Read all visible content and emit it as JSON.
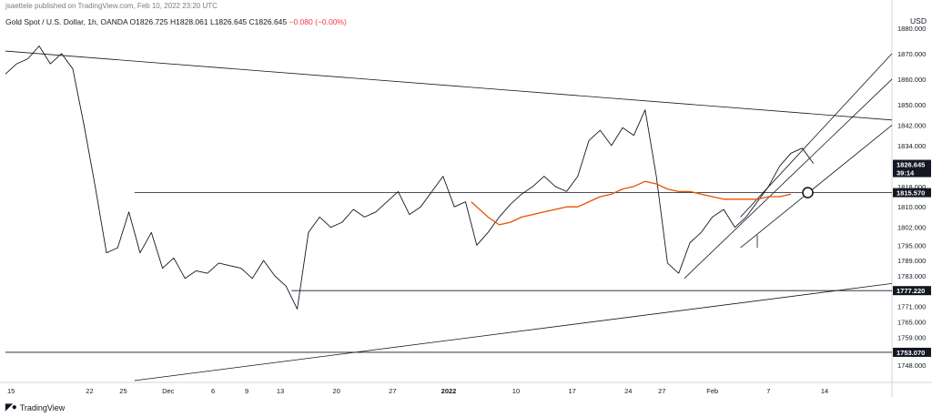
{
  "header": {
    "text": "jsaettele published on TradingView.com, Feb 10, 2022 23:20 UTC"
  },
  "instrument": {
    "name": "Gold Spot / U.S. Dollar, 1h, OANDA",
    "open": "O1826.725",
    "high": "H1828.061",
    "low": "L1826.645",
    "close": "C1826.645",
    "change": "−0.080 (−0.00%)"
  },
  "currency": "USD",
  "brand": {
    "logo_icon": "tradingview-logo-icon",
    "name": "TradingView"
  },
  "colors": {
    "price": "#131722",
    "vwap": "#e65100",
    "trendline": "#131722",
    "channel": "#787b86",
    "label_bg": "#131722",
    "label_text": "#ffffff"
  },
  "chart_data": {
    "type": "line",
    "ylim": [
      1742,
      1886
    ],
    "y_ticks": [
      1880,
      1870,
      1860,
      1850,
      1842,
      1834,
      1826,
      1818,
      1810,
      1802,
      1795,
      1789,
      1783,
      1777,
      1771,
      1765,
      1759,
      1753,
      1748
    ],
    "y_tick_labels": [
      "1880.000",
      "1870.000",
      "1860.000",
      "1850.000",
      "1842.000",
      "1834.000",
      "1826.000",
      "1818.000",
      "1810.000",
      "1802.000",
      "1795.000",
      "1789.000",
      "1783.000",
      "1777.000",
      "1771.000",
      "1765.000",
      "1759.000",
      "1753.000",
      "1748.000"
    ],
    "x_ticks": [
      {
        "label": "15",
        "i": 0.5,
        "bold": false
      },
      {
        "label": "22",
        "i": 7.5,
        "bold": false
      },
      {
        "label": "25",
        "i": 10.5,
        "bold": false
      },
      {
        "label": "Dec",
        "i": 14.5,
        "bold": false
      },
      {
        "label": "6",
        "i": 18.5,
        "bold": false
      },
      {
        "label": "9",
        "i": 21.5,
        "bold": false
      },
      {
        "label": "13",
        "i": 24.5,
        "bold": false
      },
      {
        "label": "20",
        "i": 29.5,
        "bold": false
      },
      {
        "label": "27",
        "i": 34.5,
        "bold": false
      },
      {
        "label": "2022",
        "i": 39.5,
        "bold": true
      },
      {
        "label": "10",
        "i": 45.5,
        "bold": false
      },
      {
        "label": "17",
        "i": 50.5,
        "bold": false
      },
      {
        "label": "24",
        "i": 55.5,
        "bold": false
      },
      {
        "label": "27",
        "i": 58.5,
        "bold": false
      },
      {
        "label": "Feb",
        "i": 63,
        "bold": false
      },
      {
        "label": "7",
        "i": 68,
        "bold": false
      },
      {
        "label": "14",
        "i": 73,
        "bold": false
      }
    ],
    "series": [
      {
        "type": "line",
        "points": [
          [
            0,
            1862
          ],
          [
            1,
            1866
          ],
          [
            2,
            1868
          ],
          [
            3,
            1873
          ],
          [
            4,
            1866
          ],
          [
            5,
            1870
          ],
          [
            6,
            1864
          ],
          [
            7,
            1842
          ],
          [
            8,
            1818
          ],
          [
            9,
            1792
          ],
          [
            10,
            1794
          ],
          [
            11,
            1808
          ],
          [
            12,
            1792
          ],
          [
            13,
            1800
          ],
          [
            14,
            1786
          ],
          [
            15,
            1790
          ],
          [
            16,
            1782
          ],
          [
            17,
            1785
          ],
          [
            18,
            1784
          ],
          [
            19,
            1788
          ],
          [
            20,
            1787
          ],
          [
            21,
            1786
          ],
          [
            22,
            1782
          ],
          [
            23,
            1789
          ],
          [
            24,
            1783
          ],
          [
            25,
            1779
          ],
          [
            26,
            1770
          ],
          [
            27,
            1800
          ],
          [
            28,
            1806
          ],
          [
            29,
            1802
          ],
          [
            30,
            1804
          ],
          [
            31,
            1809
          ],
          [
            32,
            1806
          ],
          [
            33,
            1808
          ],
          [
            34,
            1812
          ],
          [
            35,
            1816
          ],
          [
            36,
            1807
          ],
          [
            37,
            1810
          ],
          [
            38,
            1816
          ],
          [
            39,
            1822
          ],
          [
            40,
            1810
          ],
          [
            41,
            1812
          ],
          [
            42,
            1795
          ],
          [
            43,
            1800
          ],
          [
            44,
            1806
          ],
          [
            45,
            1811
          ],
          [
            46,
            1815
          ],
          [
            47,
            1818
          ],
          [
            48,
            1822
          ],
          [
            49,
            1818
          ],
          [
            50,
            1816
          ],
          [
            51,
            1822
          ],
          [
            52,
            1836
          ],
          [
            53,
            1840
          ],
          [
            54,
            1834
          ],
          [
            55,
            1841
          ],
          [
            56,
            1838
          ],
          [
            57,
            1848
          ],
          [
            58,
            1822
          ],
          [
            59,
            1788
          ],
          [
            60,
            1784
          ],
          [
            61,
            1796
          ],
          [
            62,
            1800
          ],
          [
            63,
            1806
          ],
          [
            64,
            1809
          ],
          [
            65,
            1802
          ],
          [
            66,
            1806
          ],
          [
            67,
            1812
          ],
          [
            68,
            1818
          ],
          [
            69,
            1826
          ],
          [
            70,
            1831
          ],
          [
            71,
            1833
          ],
          [
            72,
            1827
          ]
        ]
      },
      {
        "type": "line",
        "points": [
          [
            41.5,
            1812
          ],
          [
            42,
            1810
          ],
          [
            43,
            1806
          ],
          [
            44,
            1803
          ],
          [
            45,
            1804
          ],
          [
            46,
            1806
          ],
          [
            47,
            1807
          ],
          [
            48,
            1808
          ],
          [
            49,
            1809
          ],
          [
            50,
            1810
          ],
          [
            51,
            1810
          ],
          [
            52,
            1812
          ],
          [
            53,
            1814
          ],
          [
            54,
            1815
          ],
          [
            55,
            1817
          ],
          [
            56,
            1818
          ],
          [
            57,
            1820
          ],
          [
            58,
            1819
          ],
          [
            59,
            1817
          ],
          [
            60,
            1816
          ],
          [
            61,
            1816
          ],
          [
            62,
            1815
          ],
          [
            63,
            1814
          ],
          [
            64,
            1813
          ],
          [
            65,
            1813
          ],
          [
            66,
            1813
          ],
          [
            67,
            1813
          ],
          [
            68,
            1814
          ],
          [
            69,
            1814
          ],
          [
            70,
            1815
          ]
        ]
      }
    ],
    "lines": [
      {
        "x1": 0,
        "y1": 1871,
        "x2": 79,
        "y2": 1844
      },
      {
        "x1": 11.5,
        "y1": 1742,
        "x2": 79,
        "y2": 1780
      },
      {
        "x1": 11.5,
        "y1": 1815.57,
        "x2": 79,
        "y2": 1815.57
      },
      {
        "x1": 25.5,
        "y1": 1777.22,
        "x2": 79,
        "y2": 1777.22
      },
      {
        "x1": 0,
        "y1": 1753.07,
        "x2": 79,
        "y2": 1753.07
      },
      {
        "x1": 60.5,
        "y1": 1782,
        "x2": 79,
        "y2": 1860
      },
      {
        "x1": 65.5,
        "y1": 1806,
        "x2": 79,
        "y2": 1870
      },
      {
        "x1": 65.5,
        "y1": 1794,
        "x2": 79,
        "y2": 1842
      },
      {
        "x1": 67,
        "y1": 1799,
        "x2": 67,
        "y2": 1794
      }
    ],
    "marker": {
      "x": 71.5,
      "y": 1815.57
    },
    "price_labels": [
      {
        "label": "1826.645",
        "value": 1826.645,
        "sub": "39:14"
      },
      {
        "label": "1815.570",
        "value": 1815.57
      },
      {
        "label": "1777.220",
        "value": 1777.22
      },
      {
        "label": "1753.070",
        "value": 1753.07
      }
    ]
  }
}
